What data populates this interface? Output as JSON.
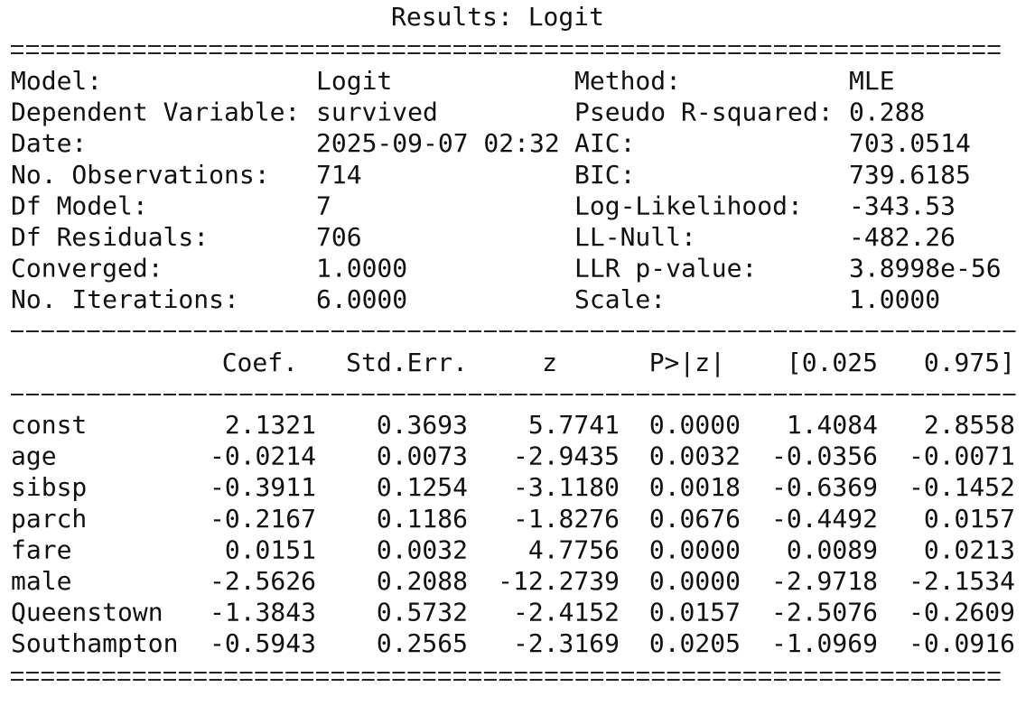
{
  "title": "Results: Logit",
  "info": {
    "rows": [
      [
        "Model:",
        "Logit",
        "Method:",
        "MLE"
      ],
      [
        "Dependent Variable:",
        "survived",
        "Pseudo R-squared:",
        "0.288"
      ],
      [
        "Date:",
        "2025-09-07 02:32",
        "AIC:",
        "703.0514"
      ],
      [
        "No. Observations:",
        "714",
        "BIC:",
        "739.6185"
      ],
      [
        "Df Model:",
        "7",
        "Log-Likelihood:",
        "-343.53"
      ],
      [
        "Df Residuals:",
        "706",
        "LL-Null:",
        "-482.26"
      ],
      [
        "Converged:",
        "1.0000",
        "LLR p-value:",
        "3.8998e-56"
      ],
      [
        "No. Iterations:",
        "6.0000",
        "Scale:",
        "1.0000"
      ]
    ]
  },
  "coef_table": {
    "columns": [
      "Coef.",
      "Std.Err.",
      "z",
      "P>|z|",
      "[0.025",
      "0.975]"
    ],
    "rows": [
      [
        "const",
        "2.1321",
        "0.3693",
        "5.7741",
        "0.0000",
        "1.4084",
        "2.8558"
      ],
      [
        "age",
        "-0.0214",
        "0.0073",
        "-2.9435",
        "0.0032",
        "-0.0356",
        "-0.0071"
      ],
      [
        "sibsp",
        "-0.3911",
        "0.1254",
        "-3.1180",
        "0.0018",
        "-0.6369",
        "-0.1452"
      ],
      [
        "parch",
        "-0.2167",
        "0.1186",
        "-1.8276",
        "0.0676",
        "-0.4492",
        "0.0157"
      ],
      [
        "fare",
        "0.0151",
        "0.0032",
        "4.7756",
        "0.0000",
        "0.0089",
        "0.0213"
      ],
      [
        "male",
        "-2.5626",
        "0.2088",
        "-12.2739",
        "0.0000",
        "-2.9718",
        "-2.1534"
      ],
      [
        "Queenstown",
        "-1.3843",
        "0.5732",
        "-2.4152",
        "0.0157",
        "-2.5076",
        "-0.2609"
      ],
      [
        "Southampton",
        "-0.5943",
        "0.2565",
        "-2.3169",
        "0.0205",
        "-1.0969",
        "-0.0916"
      ]
    ]
  }
}
